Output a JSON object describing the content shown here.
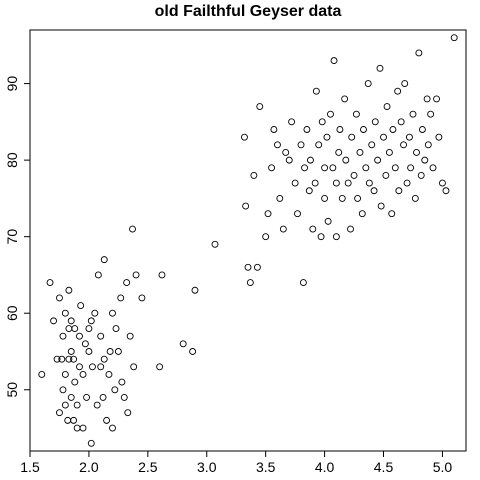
{
  "chart_data": {
    "type": "scatter",
    "title": "old Failthful Geyser data",
    "xlabel": "",
    "ylabel": "",
    "xlim": [
      1.5,
      5.2
    ],
    "ylim": [
      42,
      97
    ],
    "xticks": [
      1.5,
      2.0,
      2.5,
      3.0,
      3.5,
      4.0,
      4.5,
      5.0
    ],
    "xtick_labels": [
      "1.5",
      "2.0",
      "2.5",
      "3.0",
      "3.5",
      "4.0",
      "4.5",
      "5.0"
    ],
    "yticks": [
      50,
      60,
      70,
      80,
      90
    ],
    "ytick_labels": [
      "50",
      "60",
      "70",
      "80",
      "90"
    ],
    "grid": false,
    "marker": "open-circle",
    "series": [
      {
        "points": [
          [
            1.6,
            52
          ],
          [
            1.67,
            64
          ],
          [
            1.7,
            59
          ],
          [
            1.73,
            54
          ],
          [
            1.75,
            47
          ],
          [
            1.75,
            62
          ],
          [
            1.77,
            54
          ],
          [
            1.78,
            57
          ],
          [
            1.78,
            50
          ],
          [
            1.8,
            48
          ],
          [
            1.8,
            60
          ],
          [
            1.8,
            52
          ],
          [
            1.82,
            46
          ],
          [
            1.83,
            63
          ],
          [
            1.83,
            58
          ],
          [
            1.83,
            54
          ],
          [
            1.85,
            59
          ],
          [
            1.85,
            55
          ],
          [
            1.85,
            49
          ],
          [
            1.87,
            46
          ],
          [
            1.87,
            54
          ],
          [
            1.88,
            51
          ],
          [
            1.88,
            58
          ],
          [
            1.9,
            45
          ],
          [
            1.9,
            48
          ],
          [
            1.92,
            53
          ],
          [
            1.92,
            57
          ],
          [
            1.93,
            61
          ],
          [
            1.95,
            45
          ],
          [
            1.95,
            52
          ],
          [
            1.97,
            56
          ],
          [
            1.98,
            49
          ],
          [
            2.0,
            55
          ],
          [
            2.0,
            58
          ],
          [
            2.02,
            43
          ],
          [
            2.02,
            59
          ],
          [
            2.03,
            53
          ],
          [
            2.05,
            60
          ],
          [
            2.07,
            48
          ],
          [
            2.08,
            65
          ],
          [
            2.1,
            53
          ],
          [
            2.1,
            57
          ],
          [
            2.12,
            49
          ],
          [
            2.13,
            54
          ],
          [
            2.13,
            67
          ],
          [
            2.15,
            46
          ],
          [
            2.17,
            52
          ],
          [
            2.18,
            55
          ],
          [
            2.2,
            60
          ],
          [
            2.2,
            45
          ],
          [
            2.22,
            50
          ],
          [
            2.23,
            58
          ],
          [
            2.25,
            55
          ],
          [
            2.27,
            62
          ],
          [
            2.28,
            51
          ],
          [
            2.3,
            49
          ],
          [
            2.32,
            64
          ],
          [
            2.33,
            47
          ],
          [
            2.35,
            57
          ],
          [
            2.37,
            71
          ],
          [
            2.38,
            53
          ],
          [
            2.4,
            65
          ],
          [
            2.45,
            62
          ],
          [
            2.6,
            53
          ],
          [
            2.62,
            65
          ],
          [
            2.8,
            56
          ],
          [
            2.88,
            55
          ],
          [
            2.9,
            63
          ],
          [
            3.07,
            69
          ],
          [
            3.32,
            83
          ],
          [
            3.33,
            74
          ],
          [
            3.35,
            66
          ],
          [
            3.37,
            64
          ],
          [
            3.4,
            78
          ],
          [
            3.43,
            66
          ],
          [
            3.45,
            87
          ],
          [
            3.5,
            70
          ],
          [
            3.52,
            73
          ],
          [
            3.55,
            79
          ],
          [
            3.57,
            84
          ],
          [
            3.6,
            82
          ],
          [
            3.62,
            75
          ],
          [
            3.65,
            71
          ],
          [
            3.67,
            81
          ],
          [
            3.7,
            80
          ],
          [
            3.72,
            85
          ],
          [
            3.75,
            77
          ],
          [
            3.77,
            73
          ],
          [
            3.8,
            82
          ],
          [
            3.82,
            64
          ],
          [
            3.83,
            79
          ],
          [
            3.85,
            84
          ],
          [
            3.87,
            76
          ],
          [
            3.88,
            80
          ],
          [
            3.9,
            71
          ],
          [
            3.92,
            77
          ],
          [
            3.93,
            89
          ],
          [
            3.95,
            82
          ],
          [
            3.97,
            70
          ],
          [
            3.98,
            85
          ],
          [
            4.0,
            79
          ],
          [
            4.0,
            75
          ],
          [
            4.02,
            83
          ],
          [
            4.03,
            72
          ],
          [
            4.05,
            86
          ],
          [
            4.07,
            79
          ],
          [
            4.08,
            93
          ],
          [
            4.1,
            77
          ],
          [
            4.1,
            70
          ],
          [
            4.12,
            81
          ],
          [
            4.13,
            84
          ],
          [
            4.15,
            75
          ],
          [
            4.17,
            88
          ],
          [
            4.18,
            80
          ],
          [
            4.2,
            77
          ],
          [
            4.22,
            71
          ],
          [
            4.23,
            83
          ],
          [
            4.25,
            78
          ],
          [
            4.27,
            86
          ],
          [
            4.28,
            75
          ],
          [
            4.3,
            81
          ],
          [
            4.32,
            73
          ],
          [
            4.33,
            84
          ],
          [
            4.35,
            79
          ],
          [
            4.37,
            90
          ],
          [
            4.38,
            77
          ],
          [
            4.4,
            82
          ],
          [
            4.42,
            76
          ],
          [
            4.43,
            85
          ],
          [
            4.45,
            80
          ],
          [
            4.47,
            92
          ],
          [
            4.48,
            74
          ],
          [
            4.5,
            83
          ],
          [
            4.52,
            78
          ],
          [
            4.53,
            87
          ],
          [
            4.55,
            81
          ],
          [
            4.57,
            73
          ],
          [
            4.58,
            84
          ],
          [
            4.6,
            79
          ],
          [
            4.62,
            89
          ],
          [
            4.63,
            76
          ],
          [
            4.65,
            85
          ],
          [
            4.67,
            82
          ],
          [
            4.68,
            90
          ],
          [
            4.7,
            77
          ],
          [
            4.72,
            83
          ],
          [
            4.73,
            79
          ],
          [
            4.75,
            86
          ],
          [
            4.77,
            75
          ],
          [
            4.78,
            81
          ],
          [
            4.8,
            94
          ],
          [
            4.82,
            78
          ],
          [
            4.83,
            84
          ],
          [
            4.85,
            80
          ],
          [
            4.87,
            88
          ],
          [
            4.88,
            82
          ],
          [
            4.9,
            86
          ],
          [
            4.92,
            79
          ],
          [
            4.95,
            88
          ],
          [
            4.97,
            83
          ],
          [
            5.0,
            77
          ],
          [
            5.03,
            76
          ],
          [
            5.1,
            96
          ]
        ]
      }
    ]
  }
}
